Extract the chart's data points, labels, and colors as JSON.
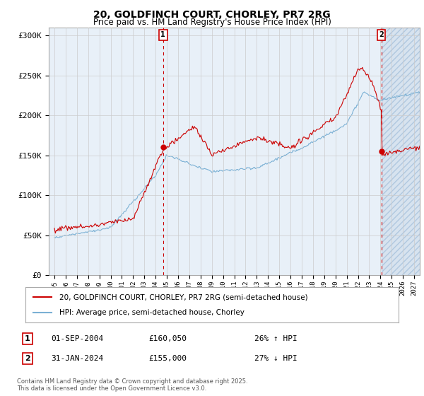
{
  "title_line1": "20, GOLDFINCH COURT, CHORLEY, PR7 2RG",
  "title_line2": "Price paid vs. HM Land Registry's House Price Index (HPI)",
  "ylim": [
    0,
    310000
  ],
  "yticks": [
    0,
    50000,
    100000,
    150000,
    200000,
    250000,
    300000
  ],
  "ytick_labels": [
    "£0",
    "£50K",
    "£100K",
    "£150K",
    "£200K",
    "£250K",
    "£300K"
  ],
  "xlim_start": 1994.5,
  "xlim_end": 2027.5,
  "red_color": "#cc0000",
  "blue_color": "#7ab0d4",
  "plot_bg_color": "#e8f0f8",
  "hatch_color": "#c8d8e8",
  "marker1_year": 2004.67,
  "marker1_value": 160050,
  "marker2_year": 2024.08,
  "marker2_value": 155000,
  "legend_entry1": "20, GOLDFINCH COURT, CHORLEY, PR7 2RG (semi-detached house)",
  "legend_entry2": "HPI: Average price, semi-detached house, Chorley",
  "table_row1_num": "1",
  "table_row1_date": "01-SEP-2004",
  "table_row1_price": "£160,050",
  "table_row1_hpi": "26% ↑ HPI",
  "table_row2_num": "2",
  "table_row2_date": "31-JAN-2024",
  "table_row2_price": "£155,000",
  "table_row2_hpi": "27% ↓ HPI",
  "footer": "Contains HM Land Registry data © Crown copyright and database right 2025.\nThis data is licensed under the Open Government Licence v3.0.",
  "background_color": "#ffffff",
  "grid_color": "#cccccc"
}
